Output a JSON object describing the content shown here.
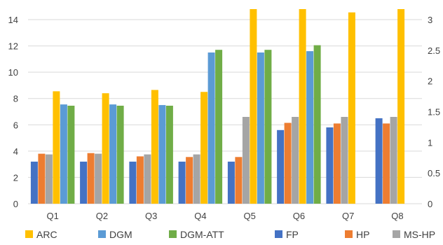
{
  "chart_data": {
    "type": "bar",
    "categories": [
      "Q1",
      "Q2",
      "Q3",
      "Q4",
      "Q5",
      "Q6",
      "Q7",
      "Q8"
    ],
    "left_axis": {
      "ylim": [
        0,
        14
      ],
      "ticks": [
        "0",
        "2",
        "4",
        "6",
        "8",
        "10",
        "12",
        "14"
      ]
    },
    "right_axis": {
      "ylim": [
        0,
        3
      ],
      "ticks": [
        "0",
        "0.5",
        "1",
        "1.5",
        "2",
        "2.5",
        "3"
      ]
    },
    "grid": true,
    "legend_position": "bottom",
    "series": [
      {
        "name": "FP",
        "color": "#4472C4",
        "values": [
          3.2,
          3.2,
          3.2,
          3.2,
          3.2,
          5.6,
          5.8,
          6.5
        ]
      },
      {
        "name": "HP",
        "color": "#ED7D31",
        "values": [
          3.8,
          3.85,
          3.6,
          3.55,
          3.55,
          6.15,
          6.1,
          6.1
        ]
      },
      {
        "name": "MS-HP",
        "color": "#A5A5A5",
        "values": [
          3.75,
          3.8,
          3.75,
          3.75,
          6.6,
          6.6,
          6.6,
          6.6
        ]
      },
      {
        "name": "ARC",
        "color": "#FFC000",
        "values": [
          8.55,
          8.4,
          8.65,
          8.5,
          14.8,
          14.8,
          14.55,
          14.8
        ]
      },
      {
        "name": "DGM",
        "color": "#5B9BD5",
        "values": [
          7.55,
          7.55,
          7.5,
          11.5,
          11.5,
          11.6,
          null,
          null
        ]
      },
      {
        "name": "DGM-ATT",
        "color": "#70AD47",
        "values": [
          7.45,
          7.45,
          7.45,
          11.7,
          11.7,
          12.05,
          null,
          null
        ]
      }
    ],
    "legend_order": [
      "ARC",
      "DGM",
      "DGM-ATT",
      "FP",
      "HP",
      "MS-HP"
    ]
  }
}
